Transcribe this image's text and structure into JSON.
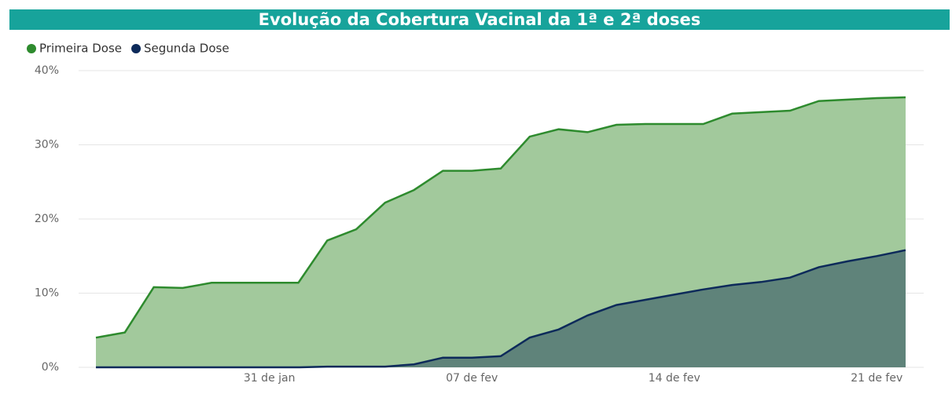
{
  "chart_data": {
    "type": "area",
    "title": "Evolução da Cobertura Vacinal da 1ª e 2ª doses",
    "categories": [
      null,
      null,
      null,
      null,
      null,
      null,
      "31 de jan",
      null,
      null,
      null,
      null,
      null,
      null,
      "07 de fev",
      null,
      null,
      null,
      null,
      null,
      null,
      "14 de fev",
      null,
      null,
      null,
      null,
      null,
      null,
      "21 de fev",
      null
    ],
    "series": [
      {
        "name": "Primeira Dose",
        "color": "#2e8b2e",
        "fill": "#a2c99c",
        "values": [
          4.0,
          4.7,
          10.8,
          10.7,
          11.4,
          11.4,
          11.4,
          11.4,
          17.1,
          18.6,
          22.2,
          23.9,
          26.5,
          26.5,
          26.8,
          31.1,
          32.1,
          31.7,
          32.7,
          32.8,
          32.8,
          32.8,
          34.2,
          34.4,
          34.6,
          35.9,
          36.1,
          36.3,
          36.4
        ]
      },
      {
        "name": "Segunda Dose",
        "color": "#0d2a5a",
        "fill": "#5f837a",
        "values": [
          0.0,
          0.0,
          0.0,
          0.0,
          0.0,
          0.0,
          0.0,
          0.0,
          0.1,
          0.1,
          0.1,
          0.4,
          1.3,
          1.3,
          1.5,
          4.0,
          5.1,
          7.0,
          8.4,
          9.1,
          9.8,
          10.5,
          11.1,
          11.5,
          12.1,
          13.5,
          14.3,
          15.0,
          15.8
        ]
      }
    ],
    "ylim": [
      0,
      40
    ],
    "yticks": [
      {
        "value": 0,
        "label": "0%"
      },
      {
        "value": 10,
        "label": "10%"
      },
      {
        "value": 20,
        "label": "20%"
      },
      {
        "value": 30,
        "label": "30%"
      },
      {
        "value": 40,
        "label": "40%"
      }
    ],
    "grid": true
  }
}
